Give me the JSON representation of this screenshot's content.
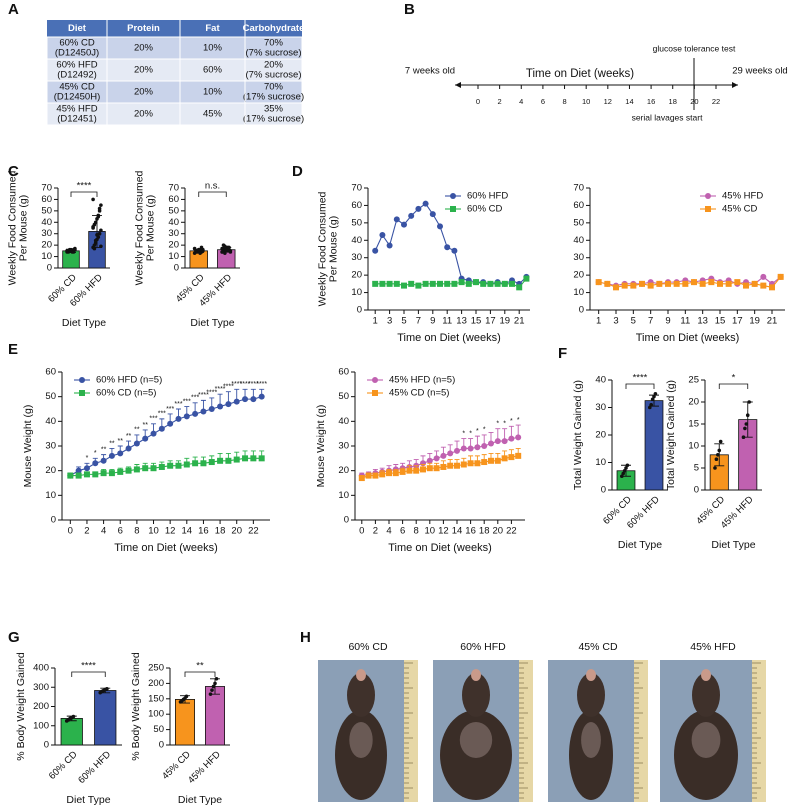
{
  "panel_labels": [
    "A",
    "B",
    "C",
    "D",
    "E",
    "F",
    "G",
    "H"
  ],
  "table": {
    "header": [
      "Diet",
      "Protein",
      "Fat",
      "Carbohydrate"
    ],
    "rows": [
      [
        [
          "60% CD",
          "(D12450J)"
        ],
        "20%",
        "10%",
        [
          "70%",
          "(7% sucrose)"
        ]
      ],
      [
        [
          "60% HFD",
          "(D12492)"
        ],
        "20%",
        "60%",
        [
          "20%",
          "(7% sucrose)"
        ]
      ],
      [
        [
          "45% CD",
          "(D12450H)"
        ],
        "20%",
        "10%",
        [
          "70%",
          "(17% sucrose)"
        ]
      ],
      [
        [
          "45% HFD",
          "(D12451)"
        ],
        "20%",
        "45%",
        [
          "35%",
          "(17% sucrose)"
        ]
      ]
    ]
  },
  "timeline": {
    "start_label": "7 weeks old",
    "end_label": "29 weeks old",
    "title": "Time on Diet (weeks)",
    "ticks": [
      0,
      2,
      4,
      6,
      8,
      10,
      12,
      14,
      16,
      18,
      20,
      22
    ],
    "event_top": "glucose tolerance test",
    "event_bottom": "serial lavages start"
  },
  "chart_data": [
    {
      "type": "bar",
      "categories": [
        "60% CD",
        "60% HFD"
      ],
      "colors": [
        "#2bb24c",
        "#3953a4"
      ],
      "values": [
        15,
        32
      ],
      "errors": [
        1.5,
        14
      ],
      "points": [
        [
          14,
          15,
          16,
          15,
          14,
          16,
          17,
          15,
          14,
          15,
          16,
          15,
          14,
          16,
          15
        ],
        [
          18,
          20,
          22,
          25,
          27,
          30,
          33,
          35,
          38,
          40,
          43,
          46,
          50,
          55,
          60,
          17,
          24,
          29,
          45,
          52,
          19,
          36
        ]
      ],
      "annotation": "****",
      "xlabel": "Diet Type",
      "ylabel": [
        "Weekly Food Consumed",
        "Per Mouse (g)"
      ],
      "ylim": [
        0,
        70
      ],
      "yticks": [
        0,
        10,
        20,
        30,
        40,
        50,
        60,
        70
      ]
    },
    {
      "type": "bar",
      "categories": [
        "45% CD",
        "45% HFD"
      ],
      "colors": [
        "#f7941d",
        "#c061b0"
      ],
      "values": [
        15,
        16
      ],
      "errors": [
        1.5,
        2
      ],
      "points": [
        [
          13,
          14,
          15,
          16,
          15,
          14,
          16,
          17,
          15,
          14,
          16,
          13,
          18,
          15
        ],
        [
          14,
          15,
          16,
          17,
          18,
          16,
          15,
          14,
          17,
          19,
          16,
          15,
          18,
          14,
          17,
          20,
          13,
          16
        ]
      ],
      "annotation": "n.s.",
      "xlabel": "Diet Type",
      "ylabel": [
        "Weekly Food Consumed",
        "Per Mouse (g)"
      ],
      "ylim": [
        0,
        70
      ],
      "yticks": [
        0,
        10,
        20,
        30,
        40,
        50,
        60,
        70
      ]
    },
    {
      "type": "line",
      "x": [
        1,
        2,
        3,
        4,
        5,
        6,
        7,
        8,
        9,
        10,
        11,
        12,
        13,
        14,
        15,
        16,
        17,
        18,
        19,
        20,
        21,
        22
      ],
      "xlim": [
        0,
        22.5
      ],
      "xticks": [
        1,
        3,
        5,
        7,
        9,
        11,
        13,
        15,
        17,
        19,
        21
      ],
      "ylim": [
        0,
        70
      ],
      "yticks": [
        0,
        10,
        20,
        30,
        40,
        50,
        60,
        70
      ],
      "legend": "upper right",
      "xlabel": "Time on Diet (weeks)",
      "ylabel": [
        "Weekly Food Consumed",
        "Per Mouse (g)"
      ],
      "series": [
        {
          "name": "60% HFD",
          "color": "#3953a4",
          "marker": "circle",
          "values": [
            34,
            43,
            37,
            52,
            49,
            54,
            58,
            61,
            55,
            48,
            36,
            34,
            18,
            17,
            16,
            16,
            15,
            16,
            15,
            17,
            15,
            19
          ]
        },
        {
          "name": "60% CD",
          "color": "#2bb24c",
          "marker": "square",
          "values": [
            15,
            15,
            15,
            15,
            14,
            15,
            14,
            15,
            15,
            15,
            15,
            15,
            16,
            15,
            16,
            15,
            15,
            15,
            15,
            15,
            13,
            18
          ]
        }
      ]
    },
    {
      "type": "line",
      "x": [
        1,
        2,
        3,
        4,
        5,
        6,
        7,
        8,
        9,
        10,
        11,
        12,
        13,
        14,
        15,
        16,
        17,
        18,
        19,
        20,
        21,
        22
      ],
      "xlim": [
        0,
        22.5
      ],
      "xticks": [
        1,
        3,
        5,
        7,
        9,
        11,
        13,
        15,
        17,
        19,
        21
      ],
      "ylim": [
        0,
        70
      ],
      "yticks": [
        0,
        10,
        20,
        30,
        40,
        50,
        60,
        70
      ],
      "legend": "upper right",
      "xlabel": "Time on Diet (weeks)",
      "series": [
        {
          "name": "45% HFD",
          "color": "#c061b0",
          "marker": "circle",
          "values": [
            16,
            15,
            14,
            15,
            15,
            15,
            16,
            15,
            16,
            16,
            17,
            16,
            17,
            18,
            16,
            17,
            15,
            16,
            15,
            19,
            15,
            19
          ]
        },
        {
          "name": "45% CD",
          "color": "#f7941d",
          "marker": "square",
          "values": [
            16,
            15,
            13,
            14,
            14,
            15,
            14,
            15,
            15,
            15,
            15,
            16,
            15,
            16,
            15,
            15,
            16,
            14,
            15,
            14,
            13,
            19
          ]
        }
      ]
    },
    {
      "type": "line",
      "x": [
        0,
        1,
        2,
        3,
        4,
        5,
        6,
        7,
        8,
        9,
        10,
        11,
        12,
        13,
        14,
        15,
        16,
        17,
        18,
        19,
        20,
        21,
        22,
        23
      ],
      "xlim": [
        -1,
        24
      ],
      "xticks": [
        0,
        2,
        4,
        6,
        8,
        10,
        12,
        14,
        16,
        18,
        20,
        22
      ],
      "ylim": [
        0,
        60
      ],
      "yticks": [
        0,
        10,
        20,
        30,
        40,
        50,
        60
      ],
      "legend": "upper left",
      "xlabel": "Time on Diet (weeks)",
      "ylabel": "Mouse Weight (g)",
      "series": [
        {
          "name": "60% HFD (n=5)",
          "color": "#3953a4",
          "marker": "circle",
          "values": [
            18,
            20,
            21,
            23,
            24,
            26,
            27,
            29,
            31,
            33,
            35,
            37,
            39,
            41,
            42,
            43,
            44,
            45,
            46,
            47,
            48,
            49,
            49,
            50
          ],
          "errors": [
            1,
            1.5,
            2,
            2,
            2.5,
            3,
            3,
            3,
            3.5,
            3.5,
            4,
            4,
            4,
            4,
            4,
            4.5,
            4.5,
            4.5,
            5,
            5,
            5,
            4,
            4,
            3
          ],
          "significance": [
            null,
            null,
            "*",
            "*",
            "**",
            "**",
            "**",
            "**",
            "**",
            "**",
            "***",
            "***",
            "***",
            "***",
            "***",
            "***",
            "****",
            "****",
            "****",
            "****",
            "****",
            "****",
            "****",
            "****"
          ]
        },
        {
          "name": "60% CD (n=5)",
          "color": "#2bb24c",
          "marker": "square",
          "values": [
            18,
            18,
            18.5,
            18.5,
            19,
            19,
            19.5,
            20,
            20.5,
            21,
            21,
            21.5,
            22,
            22,
            22.5,
            23,
            23,
            23.5,
            24,
            24,
            24.5,
            25,
            25,
            25
          ],
          "errors": [
            1,
            1,
            1,
            1,
            1.5,
            1.5,
            1.5,
            1.5,
            2,
            2,
            2,
            2,
            2,
            2,
            2.5,
            2.5,
            2.5,
            2.5,
            3,
            3,
            3,
            3,
            3,
            3
          ]
        }
      ]
    },
    {
      "type": "line",
      "x": [
        0,
        1,
        2,
        3,
        4,
        5,
        6,
        7,
        8,
        9,
        10,
        11,
        12,
        13,
        14,
        15,
        16,
        17,
        18,
        19,
        20,
        21,
        22,
        23
      ],
      "xlim": [
        -1,
        24
      ],
      "xticks": [
        0,
        2,
        4,
        6,
        8,
        10,
        12,
        14,
        16,
        18,
        20,
        22
      ],
      "ylim": [
        0,
        60
      ],
      "yticks": [
        0,
        10,
        20,
        30,
        40,
        50,
        60
      ],
      "legend": "upper left",
      "xlabel": "Time on Diet (weeks)",
      "ylabel": "Mouse Weight (g)",
      "series": [
        {
          "name": "45% HFD (n=5)",
          "color": "#c061b0",
          "marker": "circle",
          "values": [
            18,
            18.5,
            19,
            19.5,
            20,
            20.5,
            21,
            21.5,
            22,
            23,
            24,
            25,
            26,
            27,
            28,
            29,
            29,
            29.5,
            30,
            31,
            32,
            32,
            33,
            33.5
          ],
          "errors": [
            1,
            1,
            1.5,
            1.5,
            2,
            2,
            2,
            2.5,
            2.5,
            3,
            3,
            3,
            3.5,
            3.5,
            4,
            4,
            4,
            4.5,
            4.5,
            4.5,
            5,
            5,
            5,
            5
          ],
          "significance": [
            null,
            null,
            null,
            null,
            null,
            null,
            null,
            null,
            null,
            null,
            null,
            null,
            null,
            null,
            null,
            "*",
            "*",
            "*",
            "*",
            null,
            "*",
            "*",
            "*",
            "*"
          ]
        },
        {
          "name": "45% CD (n=5)",
          "color": "#f7941d",
          "marker": "square",
          "values": [
            17,
            18,
            18,
            18.5,
            19,
            19,
            19.5,
            20,
            20,
            20.5,
            21,
            21,
            21.5,
            22,
            22,
            22.5,
            23,
            23,
            23.5,
            24,
            24,
            25,
            25.5,
            26
          ],
          "errors": [
            1,
            1,
            1,
            1.5,
            1.5,
            1.5,
            1.5,
            2,
            2,
            2,
            2,
            2,
            2.5,
            2.5,
            2.5,
            2.5,
            3,
            3,
            3,
            3,
            3,
            3,
            3,
            3
          ]
        }
      ]
    },
    {
      "type": "bar",
      "categories": [
        "60% CD",
        "60% HFD"
      ],
      "colors": [
        "#2bb24c",
        "#3953a4"
      ],
      "values": [
        7,
        32.5
      ],
      "errors": [
        2,
        2
      ],
      "points": [
        [
          5,
          6,
          7,
          8,
          9
        ],
        [
          30,
          31,
          33,
          34,
          35
        ]
      ],
      "annotation": "****",
      "xlabel": "Diet Type",
      "ylabel": "Total Weight Gained (g)",
      "ylim": [
        0,
        40
      ],
      "yticks": [
        0,
        10,
        20,
        30,
        40
      ]
    },
    {
      "type": "bar",
      "categories": [
        "45% CD",
        "45% HFD"
      ],
      "colors": [
        "#f7941d",
        "#c061b0"
      ],
      "values": [
        8,
        16
      ],
      "errors": [
        2.5,
        4
      ],
      "points": [
        [
          5,
          7,
          8,
          9,
          11
        ],
        [
          12,
          14,
          15,
          17,
          20
        ]
      ],
      "annotation": "*",
      "xlabel": "Diet Type",
      "ylabel": "Total Weight Gained (g)",
      "ylim": [
        0,
        25
      ],
      "yticks": [
        0,
        5,
        10,
        15,
        20,
        25
      ]
    },
    {
      "type": "bar",
      "categories": [
        "60% CD",
        "60% HFD"
      ],
      "colors": [
        "#2bb24c",
        "#3953a4"
      ],
      "values": [
        138,
        283
      ],
      "errors": [
        12,
        12
      ],
      "points": [
        [
          125,
          130,
          138,
          142,
          148
        ],
        [
          272,
          278,
          283,
          288,
          292
        ]
      ],
      "annotation": "****",
      "xlabel": "Diet Type",
      "ylabel": "% Body Weight Gained",
      "ylim": [
        0,
        400
      ],
      "yticks": [
        0,
        100,
        200,
        300,
        400
      ]
    },
    {
      "type": "bar",
      "categories": [
        "45% CD",
        "45% HFD"
      ],
      "colors": [
        "#f7941d",
        "#c061b0"
      ],
      "values": [
        148,
        190
      ],
      "errors": [
        12,
        25
      ],
      "points": [
        [
          140,
          143,
          148,
          152,
          158
        ],
        [
          165,
          178,
          190,
          200,
          215
        ]
      ],
      "annotation": "**",
      "xlabel": "Diet Type",
      "ylabel": "% Body Weight Gained",
      "ylim": [
        0,
        250
      ],
      "yticks": [
        0,
        50,
        100,
        150,
        200,
        250
      ]
    }
  ],
  "photos": {
    "labels": [
      "60% CD",
      "60% HFD",
      "45% CD",
      "45% HFD"
    ]
  }
}
